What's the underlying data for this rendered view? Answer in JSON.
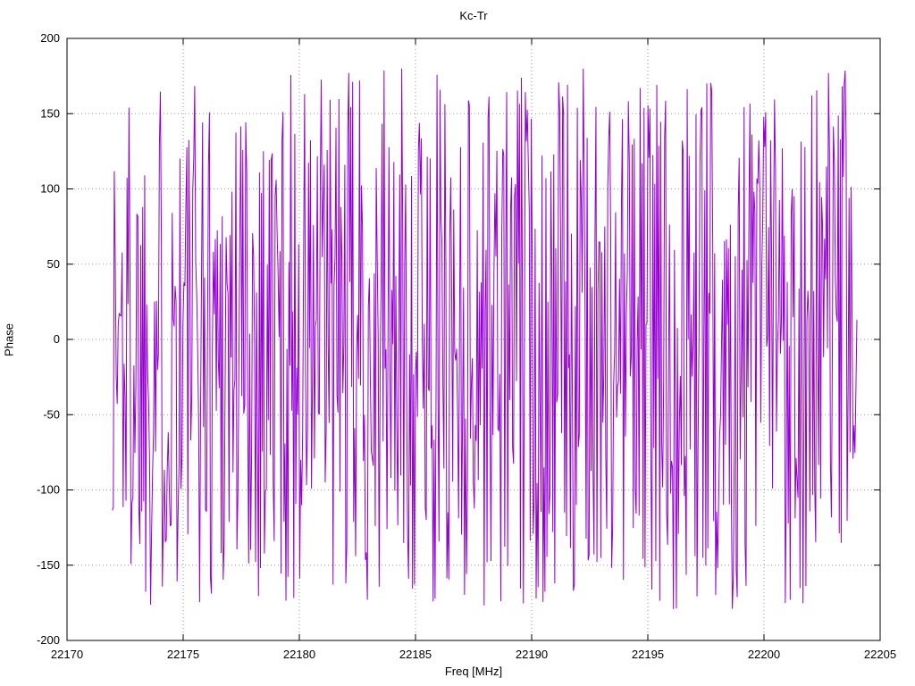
{
  "chart_data": {
    "type": "line",
    "title": "Kc-Tr",
    "xlabel": "Freq [MHz]",
    "ylabel": "Phase",
    "xlim": [
      22170,
      22205
    ],
    "ylim": [
      -200,
      200
    ],
    "x_ticks": [
      22170,
      22175,
      22180,
      22185,
      22190,
      22195,
      22200,
      22205
    ],
    "y_ticks": [
      -200,
      -150,
      -100,
      -50,
      0,
      50,
      100,
      150,
      200
    ],
    "grid": true,
    "grid_style": "dotted",
    "grid_color": "#9a9a9a",
    "border_color": "#000000",
    "background": "#ffffff",
    "legend_position": "none",
    "series": [
      {
        "name": "Kc-Tr",
        "color": "#9400d3",
        "x_start": 22171.95,
        "x_end": 22204.0,
        "n_points": 760,
        "y_distribution": "uniform random wrapped phase",
        "y_min": -180,
        "y_max": 180,
        "seed": 1337
      }
    ]
  }
}
